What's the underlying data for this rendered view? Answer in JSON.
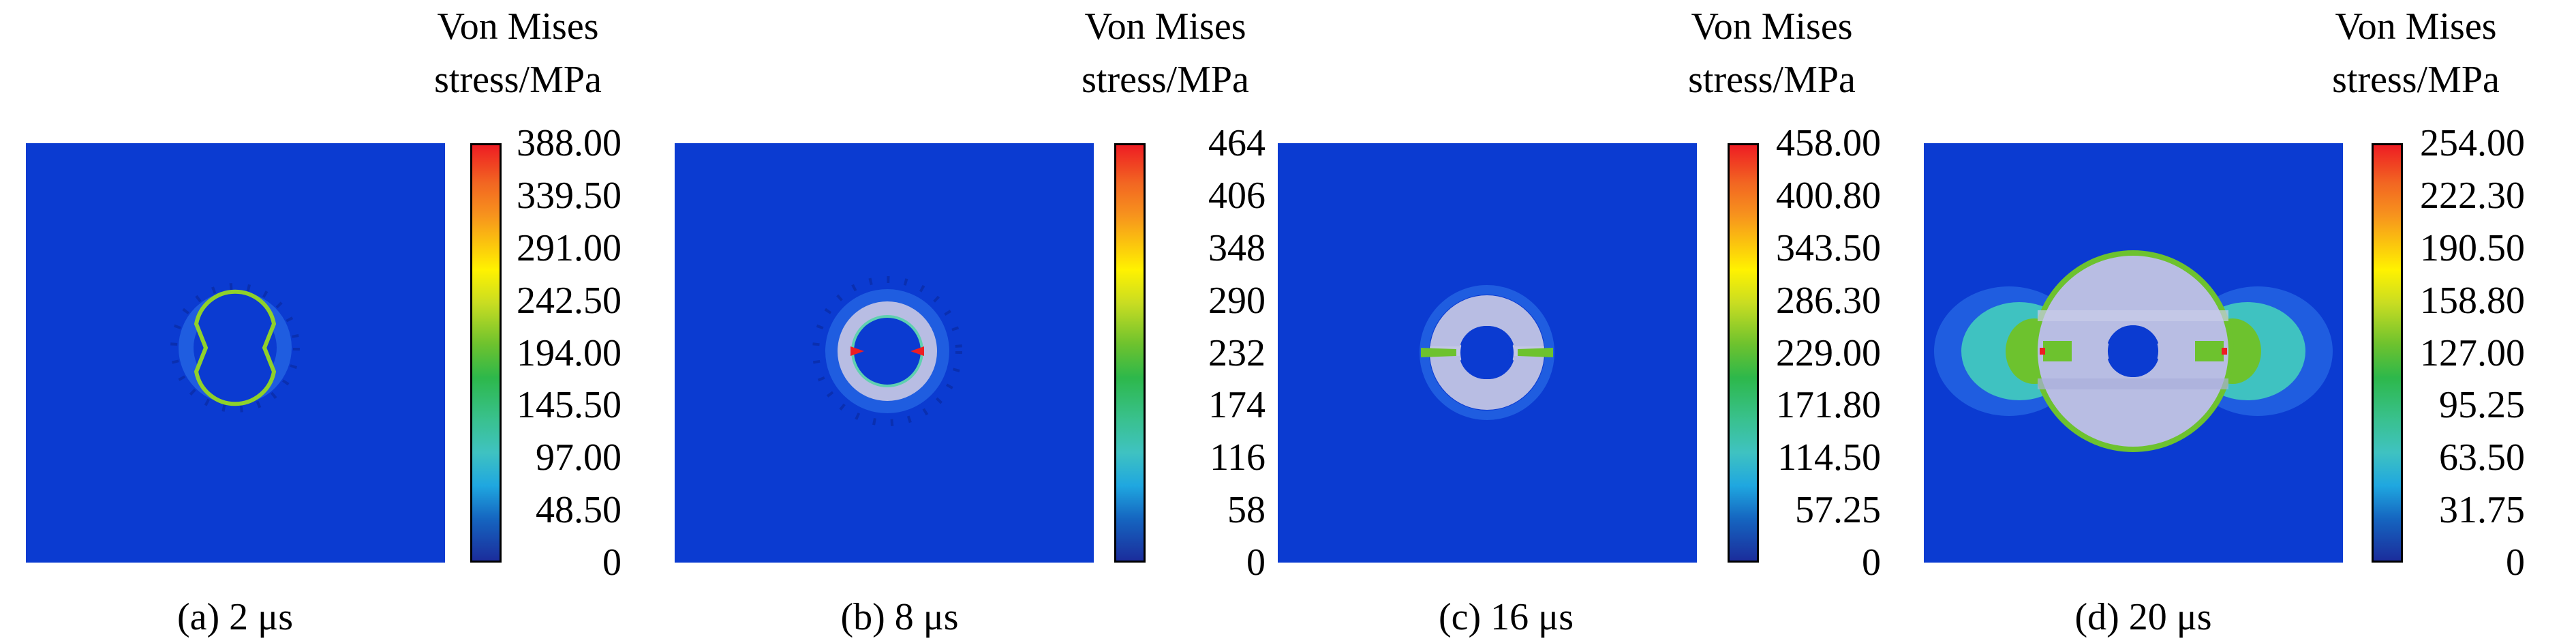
{
  "panels": [
    {
      "caption": "(a) 2 μs",
      "colorbar_title_line1": "Von Mises",
      "colorbar_title_line2": "stress/MPa",
      "ticks": [
        "388.00",
        "339.50",
        "291.00",
        "242.50",
        "194.00",
        "145.50",
        "97.00",
        "48.50",
        "0"
      ]
    },
    {
      "caption": "(b) 8 μs",
      "colorbar_title_line1": "Von Mises",
      "colorbar_title_line2": "stress/MPa",
      "ticks": [
        "464",
        "406",
        "348",
        "290",
        "232",
        "174",
        "116",
        "58",
        "0"
      ]
    },
    {
      "caption": "(c) 16 μs",
      "colorbar_title_line1": "Von Mises",
      "colorbar_title_line2": "stress/MPa",
      "ticks": [
        "458.00",
        "400.80",
        "343.50",
        "286.30",
        "229.00",
        "171.80",
        "114.50",
        "57.25",
        "0"
      ]
    },
    {
      "caption": "(d) 20 μs",
      "colorbar_title_line1": "Von Mises",
      "colorbar_title_line2": "stress/MPa",
      "ticks": [
        "254.00",
        "222.30",
        "190.50",
        "158.80",
        "127.00",
        "95.25",
        "63.50",
        "31.75",
        "0"
      ]
    }
  ],
  "colors": {
    "background_field": "#0b3bd1",
    "stressed_zone": "#b8bde3",
    "hole": "#0b3bd1"
  }
}
